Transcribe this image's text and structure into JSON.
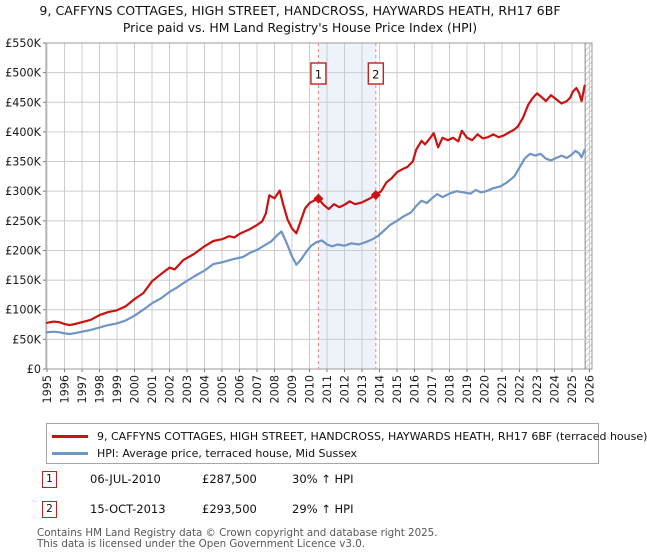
{
  "title": {
    "line1": "9, CAFFYNS COTTAGES, HIGH STREET, HANDCROSS, HAYWARDS HEATH, RH17 6BF",
    "line2": "Price paid vs. HM Land Registry's House Price Index (HPI)"
  },
  "legend": {
    "series": [
      {
        "label": "9, CAFFYNS COTTAGES, HIGH STREET, HANDCROSS, HAYWARDS HEATH, RH17 6BF (terraced house)",
        "color": "#cc1111"
      },
      {
        "label": "HPI: Average price, terraced house, Mid Sussex",
        "color": "#6f94c6"
      }
    ]
  },
  "transactions": [
    {
      "num": "1",
      "date": "06-JUL-2010",
      "price": "£287,500",
      "vs_hpi": "30% ↑ HPI"
    },
    {
      "num": "2",
      "date": "15-OCT-2013",
      "price": "£293,500",
      "vs_hpi": "29% ↑ HPI"
    }
  ],
  "footer": {
    "line1": "Contains HM Land Registry data © Crown copyright and database right 2025.",
    "line2": "This data is licensed under the Open Government Licence v3.0."
  },
  "colors": {
    "grid": "#cccccc",
    "axis": "#9a9a9a",
    "tick": "#777777",
    "band": "#eef2fb",
    "marker_line": "#ee8585",
    "marker_box_border": "#bb2222",
    "hatch": "#c8c8c8",
    "hatch_edge": "#8a8a8a",
    "label_text": "#1a1a1a"
  },
  "chart_data": {
    "type": "line",
    "title": "Price paid vs. HM Land Registry's House Price Index (HPI)",
    "xlabel": "",
    "ylabel": "",
    "y_unit": "GBP thousands",
    "grid": true,
    "legend_position": "bottom",
    "xlim": [
      1994.94,
      2026.14
    ],
    "ylim": [
      0,
      550
    ],
    "x_ticks": [
      1995,
      1996,
      1997,
      1998,
      1999,
      2000,
      2001,
      2002,
      2003,
      2004,
      2005,
      2006,
      2007,
      2008,
      2009,
      2010,
      2011,
      2012,
      2013,
      2014,
      2015,
      2016,
      2017,
      2018,
      2019,
      2020,
      2021,
      2022,
      2023,
      2024,
      2025,
      2026
    ],
    "y_ticks": [
      0,
      50,
      100,
      150,
      200,
      250,
      300,
      350,
      400,
      450,
      500,
      550
    ],
    "band": {
      "from": 2010.51,
      "to": 2013.79
    },
    "hatch_from": 2025.75,
    "markers": [
      {
        "label": "1",
        "x": 2010.51,
        "y": 287.5
      },
      {
        "label": "2",
        "x": 2013.79,
        "y": 293.5
      }
    ],
    "series": [
      {
        "name": "price-paid-9-caffyns-cottages",
        "color": "#cc1111",
        "points": [
          [
            1995.0,
            78
          ],
          [
            1995.4,
            80
          ],
          [
            1995.7,
            79
          ],
          [
            1996.0,
            76
          ],
          [
            1996.3,
            74
          ],
          [
            1996.6,
            76
          ],
          [
            1997.0,
            79
          ],
          [
            1997.5,
            83
          ],
          [
            1998.0,
            91
          ],
          [
            1998.5,
            96
          ],
          [
            1999.0,
            99
          ],
          [
            1999.5,
            106
          ],
          [
            2000.0,
            118
          ],
          [
            2000.5,
            128
          ],
          [
            2001.0,
            148
          ],
          [
            2001.5,
            160
          ],
          [
            2002.0,
            171
          ],
          [
            2002.3,
            168
          ],
          [
            2002.8,
            184
          ],
          [
            2003.4,
            194
          ],
          [
            2004.0,
            207
          ],
          [
            2004.5,
            216
          ],
          [
            2005.0,
            219
          ],
          [
            2005.4,
            224
          ],
          [
            2005.7,
            222
          ],
          [
            2006.0,
            228
          ],
          [
            2006.3,
            232
          ],
          [
            2006.6,
            236
          ],
          [
            2007.0,
            243
          ],
          [
            2007.3,
            249
          ],
          [
            2007.5,
            262
          ],
          [
            2007.7,
            293
          ],
          [
            2008.0,
            288
          ],
          [
            2008.3,
            301
          ],
          [
            2008.5,
            277
          ],
          [
            2008.75,
            252
          ],
          [
            2009.0,
            237
          ],
          [
            2009.25,
            229
          ],
          [
            2009.5,
            250
          ],
          [
            2009.75,
            271
          ],
          [
            2010.0,
            280
          ],
          [
            2010.25,
            284
          ],
          [
            2010.51,
            287.5
          ],
          [
            2010.8,
            277
          ],
          [
            2011.1,
            270
          ],
          [
            2011.4,
            278
          ],
          [
            2011.7,
            273
          ],
          [
            2012.0,
            277
          ],
          [
            2012.3,
            283
          ],
          [
            2012.6,
            278
          ],
          [
            2013.0,
            281
          ],
          [
            2013.4,
            287
          ],
          [
            2013.79,
            293.5
          ],
          [
            2014.1,
            300
          ],
          [
            2014.4,
            315
          ],
          [
            2014.7,
            322
          ],
          [
            2015.0,
            332
          ],
          [
            2015.3,
            337
          ],
          [
            2015.6,
            341
          ],
          [
            2015.9,
            350
          ],
          [
            2016.1,
            370
          ],
          [
            2016.4,
            385
          ],
          [
            2016.6,
            379
          ],
          [
            2016.9,
            390
          ],
          [
            2017.1,
            398
          ],
          [
            2017.35,
            374
          ],
          [
            2017.6,
            390
          ],
          [
            2017.9,
            386
          ],
          [
            2018.2,
            390
          ],
          [
            2018.5,
            384
          ],
          [
            2018.7,
            402
          ],
          [
            2019.0,
            390
          ],
          [
            2019.3,
            386
          ],
          [
            2019.6,
            396
          ],
          [
            2019.9,
            389
          ],
          [
            2020.2,
            391
          ],
          [
            2020.5,
            396
          ],
          [
            2020.8,
            391
          ],
          [
            2021.1,
            394
          ],
          [
            2021.4,
            399
          ],
          [
            2021.7,
            404
          ],
          [
            2021.9,
            409
          ],
          [
            2022.2,
            424
          ],
          [
            2022.5,
            446
          ],
          [
            2022.75,
            457
          ],
          [
            2023.0,
            465
          ],
          [
            2023.25,
            459
          ],
          [
            2023.5,
            452
          ],
          [
            2023.8,
            462
          ],
          [
            2024.1,
            455
          ],
          [
            2024.4,
            448
          ],
          [
            2024.7,
            452
          ],
          [
            2024.9,
            458
          ],
          [
            2025.05,
            468
          ],
          [
            2025.25,
            474
          ],
          [
            2025.4,
            466
          ],
          [
            2025.55,
            452
          ],
          [
            2025.72,
            478
          ]
        ]
      },
      {
        "name": "hpi-average-terraced-mid-sussex",
        "color": "#6f94c6",
        "points": [
          [
            1995.0,
            62
          ],
          [
            1995.4,
            63
          ],
          [
            1995.7,
            62
          ],
          [
            1996.0,
            60
          ],
          [
            1996.3,
            59
          ],
          [
            1996.7,
            61
          ],
          [
            1997.0,
            63
          ],
          [
            1997.5,
            66
          ],
          [
            1998.0,
            70
          ],
          [
            1998.5,
            74
          ],
          [
            1999.0,
            77
          ],
          [
            1999.5,
            82
          ],
          [
            2000.0,
            90
          ],
          [
            2000.5,
            100
          ],
          [
            2001.0,
            111
          ],
          [
            2001.5,
            119
          ],
          [
            2002.0,
            130
          ],
          [
            2002.4,
            137
          ],
          [
            2002.8,
            145
          ],
          [
            2003.4,
            156
          ],
          [
            2004.0,
            166
          ],
          [
            2004.5,
            177
          ],
          [
            2005.0,
            180
          ],
          [
            2005.6,
            185
          ],
          [
            2006.2,
            189
          ],
          [
            2006.6,
            196
          ],
          [
            2007.0,
            201
          ],
          [
            2007.4,
            208
          ],
          [
            2007.8,
            215
          ],
          [
            2008.1,
            224
          ],
          [
            2008.4,
            232
          ],
          [
            2008.7,
            212
          ],
          [
            2009.0,
            190
          ],
          [
            2009.25,
            176
          ],
          [
            2009.5,
            184
          ],
          [
            2009.8,
            197
          ],
          [
            2010.1,
            208
          ],
          [
            2010.4,
            214
          ],
          [
            2010.7,
            217
          ],
          [
            2011.0,
            210
          ],
          [
            2011.3,
            207
          ],
          [
            2011.6,
            210
          ],
          [
            2012.0,
            208
          ],
          [
            2012.4,
            212
          ],
          [
            2012.8,
            210
          ],
          [
            2013.2,
            214
          ],
          [
            2013.6,
            219
          ],
          [
            2013.9,
            224
          ],
          [
            2014.2,
            232
          ],
          [
            2014.6,
            243
          ],
          [
            2015.0,
            250
          ],
          [
            2015.4,
            258
          ],
          [
            2015.8,
            264
          ],
          [
            2016.1,
            275
          ],
          [
            2016.4,
            284
          ],
          [
            2016.7,
            280
          ],
          [
            2017.0,
            288
          ],
          [
            2017.3,
            295
          ],
          [
            2017.6,
            290
          ],
          [
            2018.0,
            296
          ],
          [
            2018.4,
            300
          ],
          [
            2018.8,
            298
          ],
          [
            2019.2,
            296
          ],
          [
            2019.5,
            302
          ],
          [
            2019.8,
            298
          ],
          [
            2020.1,
            300
          ],
          [
            2020.5,
            305
          ],
          [
            2020.9,
            308
          ],
          [
            2021.3,
            315
          ],
          [
            2021.7,
            325
          ],
          [
            2022.0,
            340
          ],
          [
            2022.3,
            355
          ],
          [
            2022.6,
            363
          ],
          [
            2022.9,
            360
          ],
          [
            2023.2,
            363
          ],
          [
            2023.5,
            355
          ],
          [
            2023.8,
            352
          ],
          [
            2024.1,
            356
          ],
          [
            2024.4,
            360
          ],
          [
            2024.7,
            356
          ],
          [
            2025.0,
            362
          ],
          [
            2025.2,
            368
          ],
          [
            2025.4,
            364
          ],
          [
            2025.55,
            357
          ],
          [
            2025.72,
            370
          ]
        ]
      }
    ]
  }
}
